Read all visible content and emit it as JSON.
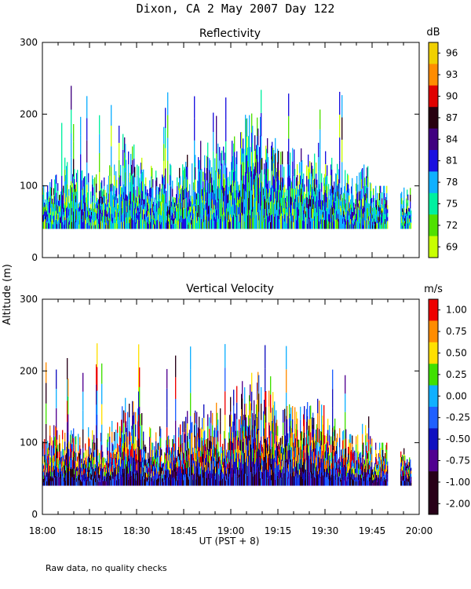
{
  "page_title": "Dixon, CA  2 May 2007  Day 122",
  "y_axis_label": "Altitude (m)",
  "x_axis_label": "UT  (PST + 8)",
  "footer_note": "Raw data, no quality checks",
  "x_ticks": [
    "18:00",
    "18:15",
    "18:30",
    "18:45",
    "19:00",
    "19:15",
    "19:30",
    "19:45",
    "20:00"
  ],
  "chart_data": [
    {
      "type": "heatmap",
      "title": "Reflectivity",
      "xlabel": "UT  (PST + 8)",
      "ylabel": "Altitude (m)",
      "xlim_minutes_after_1800": [
        0,
        120
      ],
      "ylim": [
        0,
        300
      ],
      "y_ticks": [
        "0",
        "100",
        "200",
        "300"
      ],
      "colorbar": {
        "unit": "dB",
        "tick_labels": [
          "96",
          "93",
          "90",
          "87",
          "84",
          "81",
          "78",
          "75",
          "72",
          "69"
        ],
        "colors": [
          "#f0d000",
          "#ff8c00",
          "#e00000",
          "#280010",
          "#400080",
          "#1a10e0",
          "#10b0ff",
          "#00f0a0",
          "#50e000",
          "#c8ff00"
        ]
      },
      "data_extent": {
        "altitude_min": 40,
        "altitude_max": 240,
        "time_end_minutes": 120
      },
      "typical_values_db": [
        75,
        78,
        81
      ]
    },
    {
      "type": "heatmap",
      "title": "Vertical Velocity",
      "xlabel": "UT  (PST + 8)",
      "ylabel": "Altitude (m)",
      "xlim_minutes_after_1800": [
        0,
        120
      ],
      "ylim": [
        0,
        300
      ],
      "y_ticks": [
        "0",
        "100",
        "200",
        "300"
      ],
      "colorbar": {
        "unit": "m/s",
        "tick_labels": [
          "1.00",
          "0.75",
          "0.50",
          "0.25",
          "0.00",
          "-0.25",
          "-0.50",
          "-0.75",
          "-1.00",
          "-2.00"
        ],
        "colors": [
          "#ee0000",
          "#ff8c00",
          "#ffe000",
          "#40e000",
          "#10b0ff",
          "#2060ff",
          "#1010c0",
          "#500090",
          "#280018",
          "#280018"
        ]
      },
      "data_extent": {
        "altitude_min": 40,
        "altitude_max": 240,
        "time_end_minutes": 120
      },
      "velocity_range_ms": [
        -2.0,
        1.2
      ]
    }
  ]
}
